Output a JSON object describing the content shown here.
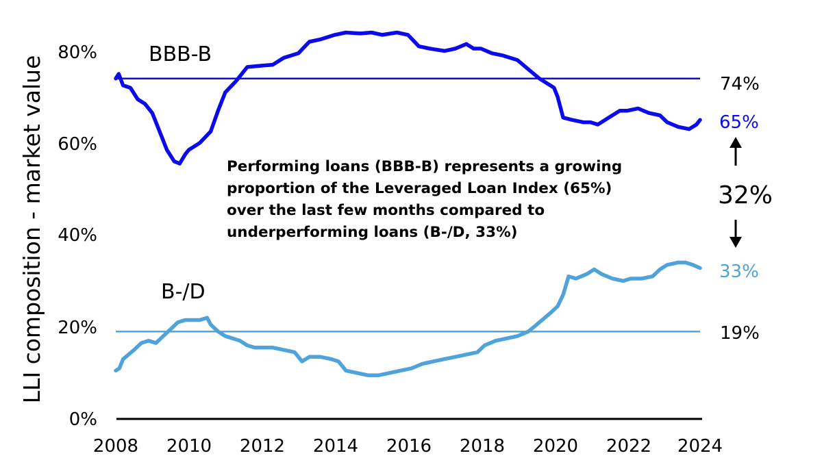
{
  "colors": {
    "bbb_b": "#0A0AEB",
    "b_d": "#4FA3DC",
    "axis": "#000000"
  },
  "chart_data": {
    "type": "line",
    "title": "",
    "xlabel": "",
    "ylabel": "LLI composition - market value",
    "x_ticks": [
      "2008",
      "2010",
      "2012",
      "2014",
      "2016",
      "2018",
      "2020",
      "2022",
      "2024"
    ],
    "y_ticks": [
      "0%",
      "20%",
      "40%",
      "60%",
      "80%"
    ],
    "xlim": [
      2008,
      2024
    ],
    "ylim": [
      0,
      85
    ],
    "grid": false,
    "series": [
      {
        "name": "BBB-B",
        "color": "#0A0AEB",
        "reference_value": 74,
        "reference_label": "74%",
        "end_label": "65%",
        "points": [
          [
            2008.0,
            74
          ],
          [
            2008.08,
            75
          ],
          [
            2008.2,
            72.5
          ],
          [
            2008.4,
            72
          ],
          [
            2008.6,
            69.5
          ],
          [
            2008.8,
            68.5
          ],
          [
            2009.0,
            66.5
          ],
          [
            2009.2,
            62.5
          ],
          [
            2009.4,
            58.5
          ],
          [
            2009.6,
            56
          ],
          [
            2009.75,
            55.5
          ],
          [
            2009.9,
            57.5
          ],
          [
            2010.0,
            58.5
          ],
          [
            2010.3,
            60
          ],
          [
            2010.6,
            62.5
          ],
          [
            2010.8,
            67
          ],
          [
            2011.0,
            71
          ],
          [
            2011.3,
            73.5
          ],
          [
            2011.6,
            76.5
          ],
          [
            2012.0,
            76.8
          ],
          [
            2012.3,
            77
          ],
          [
            2012.6,
            78.5
          ],
          [
            2013.0,
            79.5
          ],
          [
            2013.3,
            82
          ],
          [
            2013.6,
            82.5
          ],
          [
            2014.0,
            83.5
          ],
          [
            2014.3,
            84
          ],
          [
            2014.7,
            83.8
          ],
          [
            2015.0,
            84
          ],
          [
            2015.3,
            83.5
          ],
          [
            2015.7,
            84
          ],
          [
            2016.0,
            83.5
          ],
          [
            2016.3,
            81
          ],
          [
            2016.6,
            80.5
          ],
          [
            2017.0,
            80
          ],
          [
            2017.3,
            80.5
          ],
          [
            2017.6,
            81.5
          ],
          [
            2017.8,
            80.5
          ],
          [
            2018.0,
            80.5
          ],
          [
            2018.3,
            79.5
          ],
          [
            2018.6,
            79
          ],
          [
            2019.0,
            78
          ],
          [
            2019.3,
            76
          ],
          [
            2019.6,
            74
          ],
          [
            2019.8,
            73
          ],
          [
            2020.0,
            72
          ],
          [
            2020.1,
            70
          ],
          [
            2020.25,
            65.5
          ],
          [
            2020.5,
            65
          ],
          [
            2020.8,
            64.5
          ],
          [
            2021.0,
            64.5
          ],
          [
            2021.2,
            64
          ],
          [
            2021.5,
            65.5
          ],
          [
            2021.8,
            67
          ],
          [
            2022.0,
            67
          ],
          [
            2022.3,
            67.5
          ],
          [
            2022.6,
            66.5
          ],
          [
            2022.9,
            66
          ],
          [
            2023.1,
            64.5
          ],
          [
            2023.4,
            63.5
          ],
          [
            2023.7,
            63
          ],
          [
            2023.9,
            64
          ],
          [
            2024.0,
            65
          ]
        ]
      },
      {
        "name": "B-/D",
        "color": "#4FA3DC",
        "reference_value": 19,
        "reference_label": "19%",
        "end_label": "33%",
        "points": [
          [
            2008.0,
            10.5
          ],
          [
            2008.1,
            11
          ],
          [
            2008.2,
            13
          ],
          [
            2008.35,
            14
          ],
          [
            2008.5,
            15
          ],
          [
            2008.7,
            16.5
          ],
          [
            2008.9,
            17
          ],
          [
            2009.1,
            16.5
          ],
          [
            2009.3,
            18
          ],
          [
            2009.5,
            19.5
          ],
          [
            2009.7,
            21
          ],
          [
            2009.9,
            21.5
          ],
          [
            2010.1,
            21.5
          ],
          [
            2010.3,
            21.5
          ],
          [
            2010.5,
            22
          ],
          [
            2010.6,
            20.5
          ],
          [
            2010.8,
            19
          ],
          [
            2011.0,
            18
          ],
          [
            2011.2,
            17.5
          ],
          [
            2011.4,
            17
          ],
          [
            2011.6,
            16
          ],
          [
            2011.8,
            15.5
          ],
          [
            2012.0,
            15.5
          ],
          [
            2012.3,
            15.5
          ],
          [
            2012.6,
            15
          ],
          [
            2012.9,
            14.5
          ],
          [
            2013.1,
            12.5
          ],
          [
            2013.3,
            13.5
          ],
          [
            2013.6,
            13.5
          ],
          [
            2013.9,
            13
          ],
          [
            2014.1,
            12.5
          ],
          [
            2014.3,
            10.5
          ],
          [
            2014.6,
            10
          ],
          [
            2014.9,
            9.5
          ],
          [
            2015.2,
            9.5
          ],
          [
            2015.5,
            10
          ],
          [
            2015.8,
            10.5
          ],
          [
            2016.1,
            11
          ],
          [
            2016.4,
            12
          ],
          [
            2016.7,
            12.5
          ],
          [
            2017.0,
            13
          ],
          [
            2017.3,
            13.5
          ],
          [
            2017.6,
            14
          ],
          [
            2017.9,
            14.5
          ],
          [
            2018.1,
            16
          ],
          [
            2018.4,
            17
          ],
          [
            2018.7,
            17.5
          ],
          [
            2019.0,
            18
          ],
          [
            2019.3,
            19
          ],
          [
            2019.6,
            21
          ],
          [
            2019.9,
            23
          ],
          [
            2020.1,
            24.5
          ],
          [
            2020.25,
            27
          ],
          [
            2020.4,
            31
          ],
          [
            2020.6,
            30.5
          ],
          [
            2020.9,
            31.5
          ],
          [
            2021.1,
            32.5
          ],
          [
            2021.3,
            31.5
          ],
          [
            2021.6,
            30.5
          ],
          [
            2021.9,
            30
          ],
          [
            2022.1,
            30.5
          ],
          [
            2022.4,
            30.5
          ],
          [
            2022.7,
            31
          ],
          [
            2022.9,
            32.5
          ],
          [
            2023.1,
            33.5
          ],
          [
            2023.4,
            34
          ],
          [
            2023.6,
            34
          ],
          [
            2023.8,
            33.5
          ],
          [
            2024.0,
            32.8
          ]
        ]
      }
    ],
    "annotations": {
      "note_lines": [
        "Performing loans (BBB-B) represents a growing",
        "proportion of the Leveraged Loan Index (65%)",
        "over the last few months compared to",
        "underperforming loans (B-/D, 33%)"
      ],
      "gap_label": "32%"
    }
  }
}
